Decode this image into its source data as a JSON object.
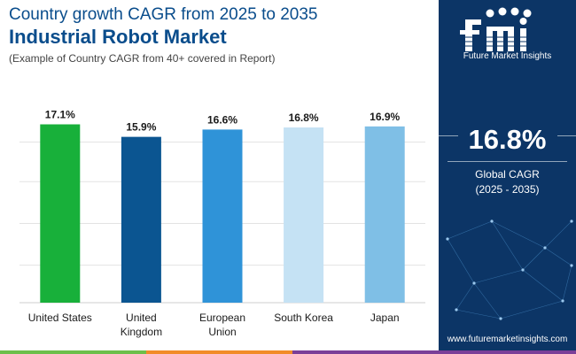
{
  "header": {
    "title_line1": "Country growth CAGR from 2025 to 2035",
    "title_line2": "Industrial Robot Market",
    "subtitle": "(Example of Country CAGR from 40+ covered in Report)"
  },
  "chart_data": {
    "type": "bar",
    "title": "Industrial Robot Market",
    "categories": [
      "United States",
      "United Kingdom",
      "European Union",
      "South Korea",
      "Japan"
    ],
    "category_lines": [
      [
        "United States"
      ],
      [
        "United",
        "Kingdom"
      ],
      [
        "European",
        "Union"
      ],
      [
        "South Korea"
      ],
      [
        "Japan"
      ]
    ],
    "values": [
      17.1,
      15.9,
      16.6,
      16.8,
      16.9
    ],
    "value_labels": [
      "17.1%",
      "15.9%",
      "16.6%",
      "16.8%",
      "16.9%"
    ],
    "colors": [
      "#18b03a",
      "#0b5591",
      "#2f93d8",
      "#c5e2f4",
      "#7fbfe6"
    ],
    "ylim": [
      0,
      18.5
    ],
    "unit": "%",
    "grid": true,
    "xlabel": "",
    "ylabel": ""
  },
  "sidebar": {
    "logo_text": "fmi",
    "logo_caption": "Future Market Insights",
    "kpi_value": "16.8%",
    "kpi_label_line1": "Global CAGR",
    "kpi_label_line2": "(2025 - 2035)",
    "website": "www.futuremarketinsights.com",
    "background_color": "#0c3566"
  },
  "footer": {
    "colors": [
      "#6cbf4a",
      "#f28c28",
      "#7b3f98"
    ]
  }
}
